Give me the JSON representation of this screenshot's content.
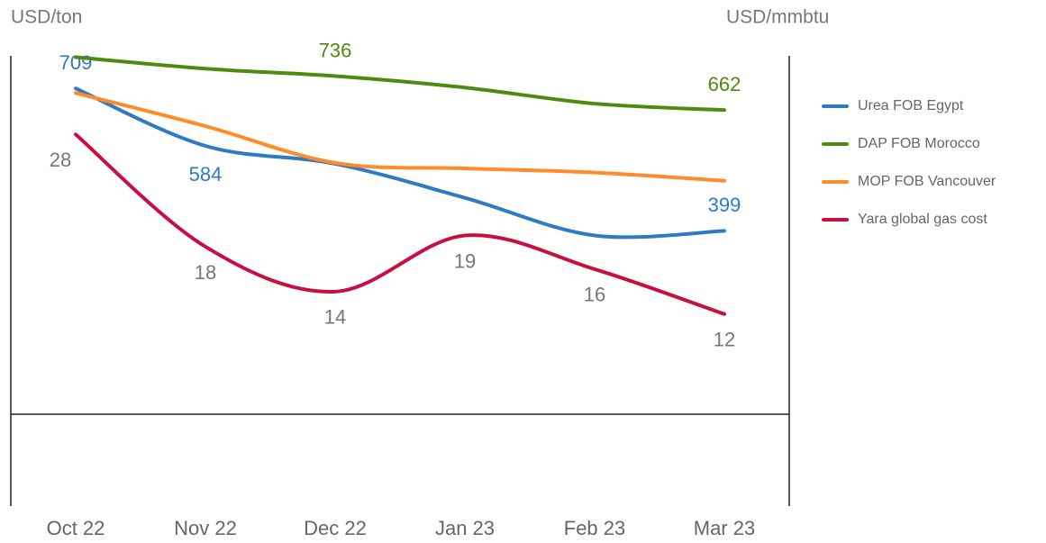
{
  "chart_data": {
    "type": "line",
    "y_label": "USD/ton",
    "y2_label": "USD/mmbtu",
    "categories": [
      "Oct 22",
      "Nov 22",
      "Dec 22",
      "Jan 23",
      "Feb 23",
      "Mar 23"
    ],
    "ylim": [
      -200,
      780
    ],
    "y2lim": [
      -5.1,
      35
    ],
    "smooth": true,
    "legend": "right",
    "series": [
      {
        "name": "Urea FOB Egypt",
        "color": "#2e7bc4",
        "values": [
          709,
          584,
          545,
          471,
          389,
          399
        ],
        "value_labels": [
          "709",
          "584",
          null,
          null,
          null,
          "399"
        ]
      },
      {
        "name": "DAP FOB Morocco",
        "color": "#4f8a10",
        "values": [
          777,
          752,
          736,
          711,
          676,
          662
        ],
        "value_labels": [
          null,
          null,
          "736",
          null,
          null,
          "662"
        ]
      },
      {
        "name": "MOP FOB Vancouver",
        "color": "#ff8c29",
        "values": [
          699,
          627,
          547,
          535,
          526,
          508
        ]
      },
      {
        "name": "Yara global gas cost",
        "color": "#c8103e",
        "axis": "y2",
        "values": [
          28,
          18,
          14,
          19,
          16,
          12
        ],
        "value_labels": [
          "28",
          "18",
          "14",
          "19",
          "16",
          "12"
        ]
      }
    ]
  }
}
